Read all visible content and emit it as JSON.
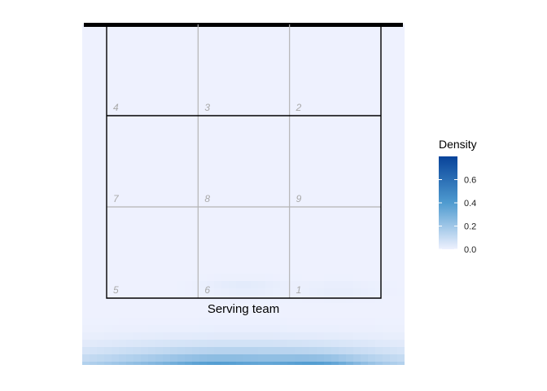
{
  "chart_data": {
    "type": "heatmap",
    "title": "",
    "xlabel": "",
    "ylabel": "",
    "court_label": "Serving team",
    "zones": [
      {
        "label": "4",
        "row": 0,
        "col": 0
      },
      {
        "label": "3",
        "row": 0,
        "col": 1
      },
      {
        "label": "2",
        "row": 0,
        "col": 2
      },
      {
        "label": "7",
        "row": 1,
        "col": 0
      },
      {
        "label": "8",
        "row": 1,
        "col": 1
      },
      {
        "label": "9",
        "row": 1,
        "col": 2
      },
      {
        "label": "5",
        "row": 2,
        "col": 0
      },
      {
        "label": "6",
        "row": 2,
        "col": 1
      },
      {
        "label": "1",
        "row": 2,
        "col": 2
      }
    ],
    "legend": {
      "title": "Density",
      "range": [
        0,
        0.8
      ],
      "ticks": [
        "0.0",
        "0.2",
        "0.4",
        "0.6"
      ],
      "tick_values": [
        0,
        0.2,
        0.4,
        0.6
      ],
      "color_low": "#eef1fe",
      "color_mid": "#4f9bd0",
      "color_high": "#08439a"
    },
    "density_hotspots": [
      {
        "x": 0.5,
        "y": -0.3,
        "sx": 0.45,
        "sy": 0.07,
        "peak": 0.45
      },
      {
        "x": 0.78,
        "y": -0.33,
        "sx": 0.1,
        "sy": 0.05,
        "peak": 0.45
      },
      {
        "x": 0.38,
        "y": -0.3,
        "sx": 0.1,
        "sy": 0.04,
        "peak": 0.15
      },
      {
        "x": 0.1,
        "y": -0.36,
        "sx": 0.18,
        "sy": 0.04,
        "peak": 0.35
      },
      {
        "x": 0.45,
        "y": -0.4,
        "sx": 0.3,
        "sy": 0.03,
        "peak": 0.2
      },
      {
        "x": 0.5,
        "y": 0.04,
        "sx": 0.1,
        "sy": 0.02,
        "peak": 0.03
      },
      {
        "x": 0.85,
        "y": 0.03,
        "sx": 0.1,
        "sy": 0.02,
        "peak": 0.02
      }
    ]
  }
}
